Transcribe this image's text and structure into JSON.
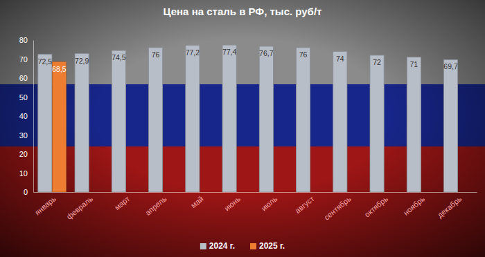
{
  "chart_data": {
    "type": "bar",
    "title": "Цена на сталь в РФ, тыс. руб/т",
    "categories": [
      "январь",
      "февраль",
      "март",
      "апрель",
      "май",
      "июнь",
      "июль",
      "август",
      "сентябрь",
      "октябрь",
      "ноябрь",
      "декабрь"
    ],
    "series": [
      {
        "name": "2024 г.",
        "color": "#b8bec8",
        "values": [
          72.5,
          72.9,
          74.5,
          76,
          77.2,
          77.4,
          76.7,
          76,
          74,
          72,
          71,
          69.7
        ],
        "value_labels": [
          "72,5",
          "72,9",
          "74,5",
          "76",
          "77,2",
          "77,4",
          "76,7",
          "76",
          "74",
          "72",
          "71",
          "69,7"
        ]
      },
      {
        "name": "2025 г.",
        "color": "#ed7d31",
        "values": [
          68.5,
          null,
          null,
          null,
          null,
          null,
          null,
          null,
          null,
          null,
          null,
          null
        ],
        "value_labels": [
          "68,5",
          null,
          null,
          null,
          null,
          null,
          null,
          null,
          null,
          null,
          null,
          null
        ]
      }
    ],
    "ylim": [
      0,
      80
    ],
    "yticks": [
      0,
      10,
      20,
      30,
      40,
      50,
      60,
      70,
      80
    ],
    "grid": false,
    "legend": "bottom",
    "data_labels": true
  }
}
